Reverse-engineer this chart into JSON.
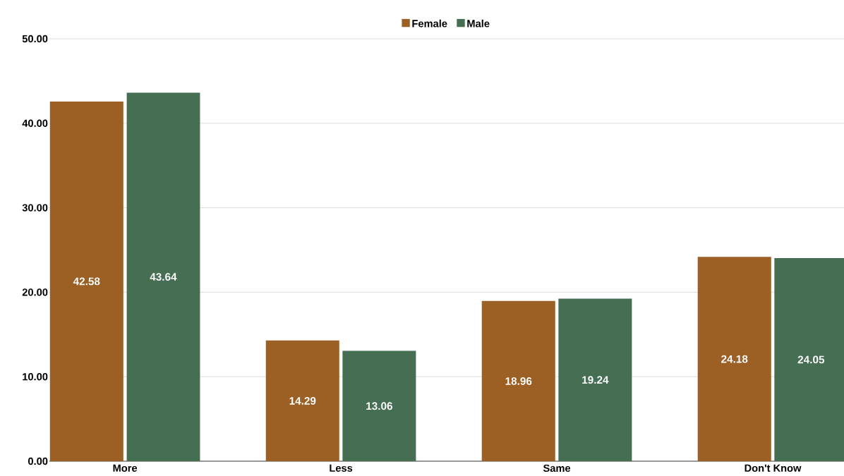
{
  "chart_data": {
    "type": "bar",
    "categories": [
      "More",
      "Less",
      "Same",
      "Don't Know"
    ],
    "series": [
      {
        "name": "Female",
        "color": "#9c5f24",
        "values": [
          42.58,
          14.29,
          18.96,
          24.18
        ]
      },
      {
        "name": "Male",
        "color": "#466e52",
        "values": [
          43.64,
          13.06,
          19.24,
          24.05
        ]
      }
    ],
    "ylim": [
      0,
      50
    ],
    "yticks": [
      {
        "value": 0,
        "label": "0.00"
      },
      {
        "value": 10,
        "label": "10.00"
      },
      {
        "value": 20,
        "label": "20.00"
      },
      {
        "value": 30,
        "label": "30.00"
      },
      {
        "value": 40,
        "label": "40.00"
      },
      {
        "value": 50,
        "label": "50.00"
      }
    ],
    "grid": "y",
    "legend": "top",
    "data_labels": true
  }
}
